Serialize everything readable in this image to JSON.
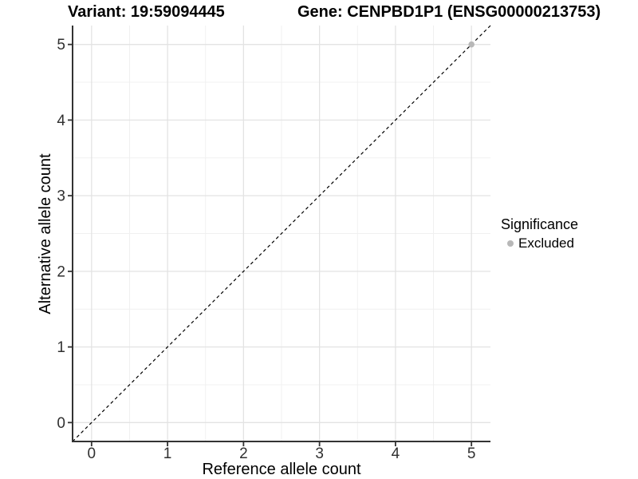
{
  "header": {
    "title_left": "Variant: 19:59094445",
    "title_right": "Gene: CENPBD1P1 (ENSG00000213753)"
  },
  "chart_data": {
    "type": "scatter",
    "title": "Variant: 19:59094445 / Gene: CENPBD1P1 (ENSG00000213753)",
    "xlabel": "Reference allele count",
    "ylabel": "Alternative allele count",
    "xlim": [
      -0.25,
      5.25
    ],
    "ylim": [
      -0.25,
      5.25
    ],
    "x_ticks": [
      0,
      1,
      2,
      3,
      4,
      5
    ],
    "y_ticks": [
      0,
      1,
      2,
      3,
      4,
      5
    ],
    "x_minor_ticks": [
      0.5,
      1.5,
      2.5,
      3.5,
      4.5
    ],
    "y_minor_ticks": [
      0.5,
      1.5,
      2.5,
      3.5,
      4.5
    ],
    "grid": true,
    "legend_position": "right",
    "series": [
      {
        "name": "Excluded",
        "color": "#b8b8b8",
        "points": [
          {
            "x": 5,
            "y": 5
          }
        ]
      }
    ],
    "reference_line": {
      "type": "abline",
      "slope": 1,
      "intercept": 0,
      "style": "dashed",
      "color": "#000000"
    }
  },
  "legend": {
    "title": "Significance",
    "items": [
      {
        "label": "Excluded",
        "color": "#b8b8b8"
      }
    ]
  },
  "colors": {
    "background": "#ffffff",
    "grid_major": "#e3e3e3",
    "grid_minor": "#f0f0f0",
    "axis_line": "#333333",
    "tick_text": "#303030",
    "point": "#b8b8b8",
    "abline": "#000000"
  }
}
